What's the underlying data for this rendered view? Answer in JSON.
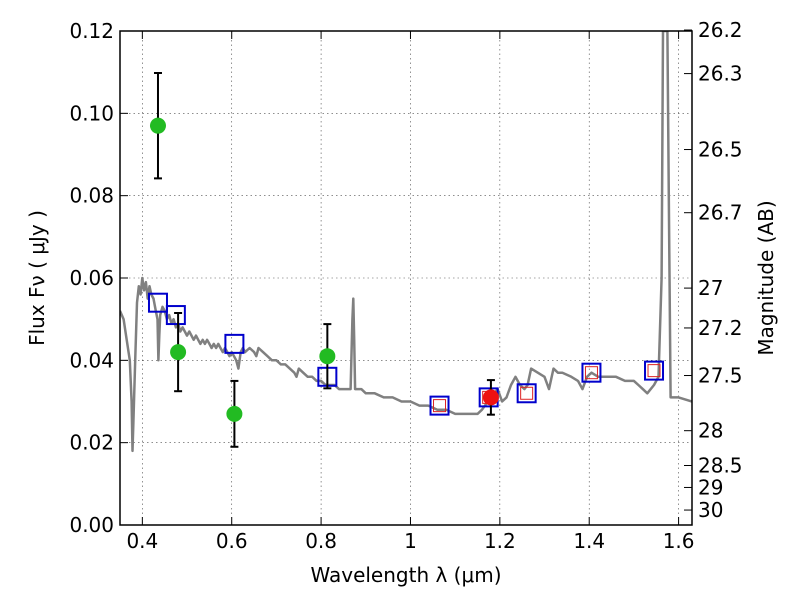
{
  "chart_data": {
    "type": "scatter",
    "xlabel": "Wavelength  λ (μm)",
    "ylabel": "Flux  Fν  ( μJy )",
    "ylabel_right": "Magnitude (AB)",
    "xlim": [
      0.35,
      1.63
    ],
    "ylim": [
      0.0,
      0.12
    ],
    "grid": true,
    "x_ticks": [
      {
        "value": 0.4,
        "label": "0.4"
      },
      {
        "value": 0.6,
        "label": "0.6"
      },
      {
        "value": 0.8,
        "label": "0.8"
      },
      {
        "value": 1.0,
        "label": "1"
      },
      {
        "value": 1.2,
        "label": "1.2"
      },
      {
        "value": 1.4,
        "label": "1.4"
      },
      {
        "value": 1.6,
        "label": "1.6"
      }
    ],
    "y_ticks": [
      {
        "value": 0.0,
        "label": "0.00"
      },
      {
        "value": 0.02,
        "label": "0.02"
      },
      {
        "value": 0.04,
        "label": "0.04"
      },
      {
        "value": 0.06,
        "label": "0.06"
      },
      {
        "value": 0.08,
        "label": "0.08"
      },
      {
        "value": 0.1,
        "label": "0.10"
      },
      {
        "value": 0.12,
        "label": "0.12"
      }
    ],
    "mag_ticks": [
      {
        "value": 26.2,
        "label": "26.2"
      },
      {
        "value": 26.3,
        "label": "26.3"
      },
      {
        "value": 26.5,
        "label": "26.5"
      },
      {
        "value": 26.7,
        "label": "26.7"
      },
      {
        "value": 27.0,
        "label": "27"
      },
      {
        "value": 27.2,
        "label": "27.2"
      },
      {
        "value": 27.5,
        "label": "27.5"
      },
      {
        "value": 28.0,
        "label": "28"
      },
      {
        "value": 28.5,
        "label": "28.5"
      },
      {
        "value": 29.0,
        "label": "29"
      },
      {
        "value": 30.0,
        "label": "30"
      }
    ],
    "colors": {
      "model": "#808080",
      "observed_green": "#22bb22",
      "observed_red": "#ee1111",
      "model_band_square": "#0000cc",
      "model_band_inner": "#dd2222",
      "errorbar": "#000000"
    },
    "model_sed": [
      [
        0.35,
        0.052
      ],
      [
        0.358,
        0.05
      ],
      [
        0.365,
        0.045
      ],
      [
        0.372,
        0.04
      ],
      [
        0.376,
        0.03
      ],
      [
        0.378,
        0.018
      ],
      [
        0.38,
        0.025
      ],
      [
        0.384,
        0.04
      ],
      [
        0.388,
        0.054
      ],
      [
        0.392,
        0.058
      ],
      [
        0.396,
        0.056
      ],
      [
        0.4,
        0.06
      ],
      [
        0.404,
        0.057
      ],
      [
        0.408,
        0.059
      ],
      [
        0.412,
        0.055
      ],
      [
        0.416,
        0.058
      ],
      [
        0.42,
        0.056
      ],
      [
        0.425,
        0.055
      ],
      [
        0.43,
        0.052
      ],
      [
        0.434,
        0.05
      ],
      [
        0.436,
        0.04
      ],
      [
        0.438,
        0.046
      ],
      [
        0.44,
        0.051
      ],
      [
        0.445,
        0.053
      ],
      [
        0.45,
        0.052
      ],
      [
        0.455,
        0.05
      ],
      [
        0.46,
        0.051
      ],
      [
        0.465,
        0.049
      ],
      [
        0.47,
        0.05
      ],
      [
        0.475,
        0.048
      ],
      [
        0.48,
        0.049
      ],
      [
        0.485,
        0.047
      ],
      [
        0.49,
        0.048
      ],
      [
        0.495,
        0.047
      ],
      [
        0.5,
        0.046
      ],
      [
        0.505,
        0.047
      ],
      [
        0.51,
        0.046
      ],
      [
        0.515,
        0.045
      ],
      [
        0.52,
        0.046
      ],
      [
        0.525,
        0.045
      ],
      [
        0.53,
        0.044
      ],
      [
        0.535,
        0.045
      ],
      [
        0.54,
        0.044
      ],
      [
        0.545,
        0.045
      ],
      [
        0.55,
        0.044
      ],
      [
        0.555,
        0.043
      ],
      [
        0.56,
        0.044
      ],
      [
        0.565,
        0.043
      ],
      [
        0.57,
        0.044
      ],
      [
        0.575,
        0.043
      ],
      [
        0.58,
        0.042
      ],
      [
        0.585,
        0.043
      ],
      [
        0.59,
        0.042
      ],
      [
        0.595,
        0.041
      ],
      [
        0.6,
        0.042
      ],
      [
        0.605,
        0.041
      ],
      [
        0.61,
        0.04
      ],
      [
        0.615,
        0.038
      ],
      [
        0.62,
        0.042
      ],
      [
        0.625,
        0.043
      ],
      [
        0.63,
        0.042
      ],
      [
        0.64,
        0.043
      ],
      [
        0.65,
        0.042
      ],
      [
        0.655,
        0.041
      ],
      [
        0.66,
        0.043
      ],
      [
        0.67,
        0.042
      ],
      [
        0.68,
        0.041
      ],
      [
        0.69,
        0.04
      ],
      [
        0.7,
        0.04
      ],
      [
        0.71,
        0.039
      ],
      [
        0.72,
        0.039
      ],
      [
        0.73,
        0.038
      ],
      [
        0.74,
        0.037
      ],
      [
        0.745,
        0.036
      ],
      [
        0.75,
        0.038
      ],
      [
        0.76,
        0.037
      ],
      [
        0.77,
        0.036
      ],
      [
        0.78,
        0.036
      ],
      [
        0.79,
        0.035
      ],
      [
        0.8,
        0.035
      ],
      [
        0.81,
        0.034
      ],
      [
        0.82,
        0.034
      ],
      [
        0.83,
        0.034
      ],
      [
        0.84,
        0.033
      ],
      [
        0.85,
        0.033
      ],
      [
        0.86,
        0.033
      ],
      [
        0.866,
        0.033
      ],
      [
        0.87,
        0.05
      ],
      [
        0.872,
        0.055
      ],
      [
        0.874,
        0.045
      ],
      [
        0.876,
        0.033
      ],
      [
        0.89,
        0.033
      ],
      [
        0.9,
        0.032
      ],
      [
        0.92,
        0.032
      ],
      [
        0.94,
        0.031
      ],
      [
        0.96,
        0.031
      ],
      [
        0.98,
        0.03
      ],
      [
        1.0,
        0.03
      ],
      [
        1.02,
        0.029
      ],
      [
        1.04,
        0.029
      ],
      [
        1.06,
        0.028
      ],
      [
        1.08,
        0.028
      ],
      [
        1.1,
        0.027
      ],
      [
        1.12,
        0.027
      ],
      [
        1.14,
        0.027
      ],
      [
        1.15,
        0.027
      ],
      [
        1.16,
        0.028
      ],
      [
        1.18,
        0.031
      ],
      [
        1.195,
        0.033
      ],
      [
        1.205,
        0.03
      ],
      [
        1.215,
        0.031
      ],
      [
        1.225,
        0.034
      ],
      [
        1.235,
        0.036
      ],
      [
        1.245,
        0.034
      ],
      [
        1.255,
        0.033
      ],
      [
        1.262,
        0.034
      ],
      [
        1.27,
        0.038
      ],
      [
        1.285,
        0.037
      ],
      [
        1.3,
        0.036
      ],
      [
        1.31,
        0.033
      ],
      [
        1.32,
        0.038
      ],
      [
        1.33,
        0.037
      ],
      [
        1.34,
        0.037
      ],
      [
        1.36,
        0.036
      ],
      [
        1.375,
        0.035
      ],
      [
        1.385,
        0.033
      ],
      [
        1.395,
        0.036
      ],
      [
        1.405,
        0.037
      ],
      [
        1.42,
        0.036
      ],
      [
        1.44,
        0.036
      ],
      [
        1.46,
        0.036
      ],
      [
        1.48,
        0.035
      ],
      [
        1.5,
        0.035
      ],
      [
        1.51,
        0.034
      ],
      [
        1.52,
        0.033
      ],
      [
        1.53,
        0.032
      ],
      [
        1.545,
        0.034
      ],
      [
        1.555,
        0.036
      ],
      [
        1.562,
        0.06
      ],
      [
        1.565,
        0.12
      ],
      [
        1.575,
        0.12
      ],
      [
        1.578,
        0.08
      ],
      [
        1.582,
        0.031
      ],
      [
        1.6,
        0.031
      ],
      [
        1.63,
        0.03
      ]
    ],
    "model_band_points": [
      {
        "x": 0.435,
        "y": 0.054
      },
      {
        "x": 0.475,
        "y": 0.051
      },
      {
        "x": 0.606,
        "y": 0.044
      },
      {
        "x": 0.814,
        "y": 0.036
      },
      {
        "x": 1.065,
        "y": 0.029,
        "inner": true
      },
      {
        "x": 1.175,
        "y": 0.031,
        "inner": true
      },
      {
        "x": 1.26,
        "y": 0.032,
        "inner": true
      },
      {
        "x": 1.405,
        "y": 0.037,
        "inner": true
      },
      {
        "x": 1.545,
        "y": 0.0375,
        "inner": true
      }
    ],
    "observed_points": [
      {
        "x": 0.435,
        "y": 0.097,
        "err": 0.0128,
        "color": "green"
      },
      {
        "x": 0.48,
        "y": 0.042,
        "err": 0.0095,
        "color": "green"
      },
      {
        "x": 0.606,
        "y": 0.027,
        "err": 0.008,
        "color": "green"
      },
      {
        "x": 0.814,
        "y": 0.041,
        "err": 0.0078,
        "color": "green"
      },
      {
        "x": 1.18,
        "y": 0.031,
        "err": 0.0042,
        "color": "red"
      }
    ]
  }
}
